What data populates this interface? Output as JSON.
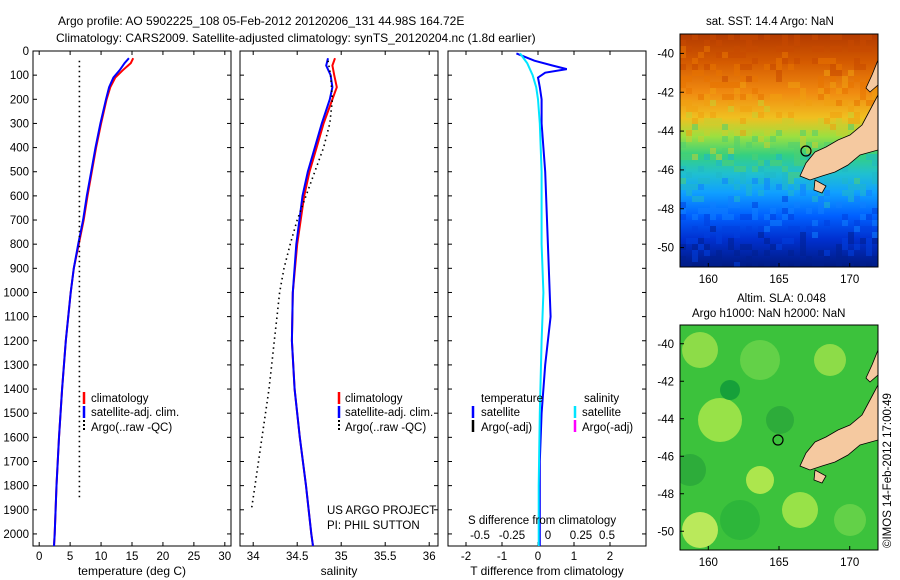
{
  "header": {
    "line1": "Argo profile: AO 5902225_108 05-Feb-2012 20120206_131 44.98S 164.72E",
    "line2": "Climatology: CARS2009. Satellite-adjusted climatology: synTS_20120204.nc (1.8d earlier)"
  },
  "colors": {
    "climatology": "#ff0000",
    "satellite": "#0000ff",
    "argo": "#000000",
    "salinity_sat": "#00e5ff",
    "salinity_argo": "#ff00ff",
    "land": "#f5c9a0"
  },
  "chart_data": [
    {
      "type": "line",
      "xlabel": "temperature (deg C)",
      "ylabel": "",
      "xlim": [
        -1,
        31
      ],
      "ylim": [
        2050,
        0
      ],
      "xticks": [
        "0",
        "5",
        "10",
        "15",
        "20",
        "25",
        "30"
      ],
      "yticks": [
        "0",
        "100",
        "200",
        "300",
        "400",
        "500",
        "600",
        "700",
        "800",
        "900",
        "1000",
        "1100",
        "1200",
        "1300",
        "1400",
        "1500",
        "1600",
        "1700",
        "1800",
        "1900",
        "2000"
      ],
      "legend": [
        "climatology",
        "satellite-adj. clim.",
        "Argo(..raw -QC)"
      ],
      "series": [
        {
          "name": "climatology",
          "depth": [
            30,
            50,
            80,
            110,
            150,
            200,
            300,
            400,
            500,
            600,
            700,
            800,
            900,
            1000,
            1200,
            1400,
            1600,
            1800,
            2000,
            2050
          ],
          "values": [
            15.2,
            14.8,
            13.5,
            12.3,
            11.5,
            10.9,
            10.0,
            9.2,
            8.5,
            7.8,
            7.2,
            6.4,
            5.6,
            5.1,
            4.3,
            3.7,
            3.2,
            2.8,
            2.5,
            2.4
          ]
        },
        {
          "name": "satellite-adj. clim.",
          "depth": [
            30,
            50,
            80,
            110,
            150,
            200,
            300,
            400,
            500,
            600,
            700,
            800,
            900,
            1000,
            1200,
            1400,
            1600,
            1800,
            2000,
            2050
          ],
          "values": [
            14.5,
            13.8,
            13.0,
            12.0,
            11.3,
            10.8,
            9.9,
            9.1,
            8.4,
            7.7,
            7.1,
            6.3,
            5.6,
            5.1,
            4.3,
            3.7,
            3.2,
            2.8,
            2.5,
            2.4
          ]
        },
        {
          "name": "Argo(..raw -QC)",
          "depth": [
            40,
            1860
          ],
          "values": [
            6.5,
            6.5
          ]
        }
      ]
    },
    {
      "type": "line",
      "xlabel": "salinity",
      "xlim": [
        33.85,
        36.1
      ],
      "ylim": [
        2050,
        0
      ],
      "xticks": [
        "34",
        "34.5",
        "35",
        "35.5",
        "36"
      ],
      "legend": [
        "climatology",
        "satellite-adj. clim.",
        "Argo(..raw -QC)"
      ],
      "annotation": [
        "US ARGO PROJECT",
        "PI: PHIL SUTTON"
      ],
      "series": [
        {
          "name": "climatology",
          "depth": [
            30,
            60,
            100,
            150,
            200,
            300,
            400,
            500,
            600,
            800,
            1000,
            1200,
            1400,
            1600,
            1800,
            2000,
            2050
          ],
          "values": [
            34.93,
            34.9,
            34.92,
            34.95,
            34.9,
            34.8,
            34.72,
            34.64,
            34.58,
            34.5,
            34.45,
            34.44,
            34.47,
            34.53,
            34.6,
            34.66,
            34.68
          ]
        },
        {
          "name": "satellite-adj. clim.",
          "depth": [
            30,
            60,
            100,
            150,
            200,
            300,
            400,
            500,
            600,
            800,
            1000,
            1200,
            1400,
            1600,
            1800,
            2000,
            2050
          ],
          "values": [
            34.85,
            34.83,
            34.88,
            34.9,
            34.87,
            34.78,
            34.7,
            34.62,
            34.56,
            34.49,
            34.45,
            34.44,
            34.47,
            34.53,
            34.6,
            34.66,
            34.68
          ]
        },
        {
          "name": "Argo(..raw -QC)",
          "depth": [
            40,
            100,
            200,
            300,
            400,
            500,
            600,
            700,
            800,
            900,
            1000,
            1100,
            1200,
            1300,
            1400,
            1500,
            1600,
            1700,
            1800,
            1900
          ],
          "values": [
            34.85,
            34.88,
            34.9,
            34.87,
            34.8,
            34.7,
            34.6,
            34.5,
            34.42,
            34.35,
            34.3,
            34.27,
            34.24,
            34.21,
            34.18,
            34.14,
            34.1,
            34.06,
            34.02,
            33.98
          ]
        }
      ]
    },
    {
      "type": "line",
      "xlabel": "T difference from climatology",
      "xlabel2": "S difference from climatology",
      "xlim": [
        -2.5,
        3
      ],
      "ylim": [
        2050,
        0
      ],
      "xticks": [
        "-2",
        "-1",
        "0",
        "1",
        "2"
      ],
      "xticks_top": [
        "-0.5",
        "-0.25",
        "0",
        "0.25",
        "0.5"
      ],
      "legend_titles": [
        "temperature",
        "salinity"
      ],
      "legend": [
        "satellite",
        "Argo(-adj)",
        "satellite",
        "Argo(-adj)"
      ],
      "series": [
        {
          "name": "temperature satellite",
          "depth": [
            10,
            40,
            60,
            75,
            90,
            110,
            150,
            200,
            300,
            400,
            500,
            700,
            900,
            1100,
            1300,
            1500,
            1700,
            1900,
            2050
          ],
          "values": [
            -0.6,
            -0.1,
            0.4,
            0.8,
            0.2,
            0.0,
            0.05,
            0.1,
            0.1,
            0.15,
            0.2,
            0.25,
            0.3,
            0.35,
            0.2,
            0.1,
            0.05,
            0.05,
            0.05
          ]
        },
        {
          "name": "salinity satellite",
          "depth": [
            10,
            50,
            100,
            150,
            200,
            300,
            500,
            800,
            1000,
            1200,
            1500,
            1800,
            2050
          ],
          "values": [
            -0.5,
            -0.3,
            -0.15,
            -0.05,
            0.0,
            0.05,
            0.1,
            0.1,
            0.15,
            0.1,
            0.05,
            0.02,
            0.02
          ]
        }
      ]
    },
    {
      "type": "heatmap",
      "title": "sat. SST: 14.4  Argo: NaN",
      "xlim": [
        158,
        172
      ],
      "ylim": [
        -51,
        -39
      ],
      "xticks": [
        "160",
        "165",
        "170"
      ],
      "yticks": [
        "-40",
        "-42",
        "-44",
        "-46",
        "-48",
        "-50"
      ],
      "marker": {
        "lon": 164.72,
        "lat": -44.98
      }
    },
    {
      "type": "heatmap",
      "title": "Altim. SLA: 0.048",
      "subtitle": "Argo h1000: NaN h2000: NaN",
      "xlim": [
        158,
        172
      ],
      "ylim": [
        -51,
        -39
      ],
      "xticks": [
        "160",
        "165",
        "170"
      ],
      "yticks": [
        "-40",
        "-42",
        "-44",
        "-46",
        "-48",
        "-50"
      ],
      "marker": {
        "lon": 164.72,
        "lat": -44.98
      }
    }
  ],
  "credit": "©IMOS 14-Feb-2012 17:00:49"
}
